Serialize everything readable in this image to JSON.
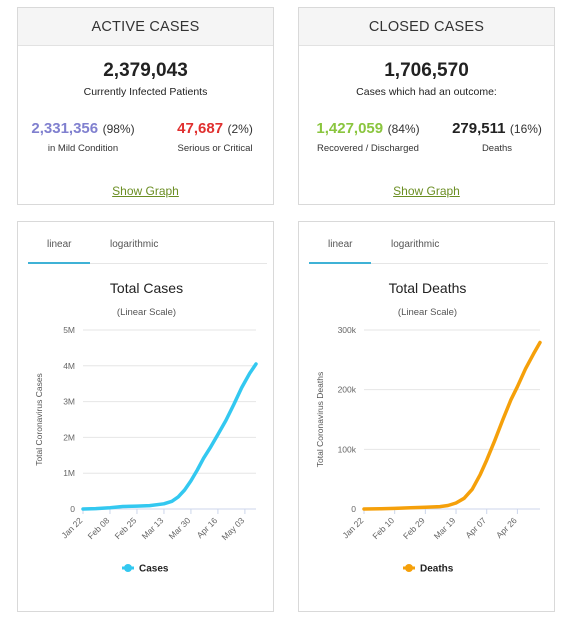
{
  "active": {
    "header": "ACTIVE CASES",
    "total": "2,379,043",
    "total_label": "Currently Infected Patients",
    "mild_num": "2,331,356",
    "mild_pct": "(98%)",
    "mild_label": "in Mild Condition",
    "serious_num": "47,687",
    "serious_pct": "(2%)",
    "serious_label": "Serious or Critical",
    "show_graph": "Show Graph"
  },
  "closed": {
    "header": "CLOSED CASES",
    "total": "1,706,570",
    "total_label": "Cases which had an outcome:",
    "recovered_num": "1,427,059",
    "recovered_pct": "(84%)",
    "recovered_label": "Recovered / Discharged",
    "deaths_num": "279,511",
    "deaths_pct": "(16%)",
    "deaths_label": "Deaths",
    "show_graph": "Show Graph"
  },
  "colors": {
    "mild": "#8080cf",
    "serious": "#e0302f",
    "recovered": "#8ac53e",
    "deaths_text": "#222222",
    "link": "#6b8e23",
    "cases_line": "#33c8f0",
    "deaths_line": "#f5a00a",
    "tab_active": "#3fb2d6"
  },
  "chart_data": [
    {
      "type": "line",
      "tabs": [
        "linear",
        "logarithmic"
      ],
      "active_tab": "linear",
      "title": "Total Cases",
      "subtitle": "(Linear Scale)",
      "ylabel": "Total Coronavirus Cases",
      "xlabel": "",
      "y_ticks": [
        "0",
        "1M",
        "2M",
        "3M",
        "4M",
        "5M"
      ],
      "ylim": [
        0,
        5000000
      ],
      "x_ticks": [
        "Jan 22",
        "Feb 08",
        "Feb 25",
        "Mar 13",
        "Mar 30",
        "Apr 16",
        "May 03"
      ],
      "grid": true,
      "legend": "bottom",
      "series": [
        {
          "name": "Cases",
          "x": [
            "Jan 22",
            "Jan 30",
            "Feb 08",
            "Feb 16",
            "Feb 25",
            "Mar 04",
            "Mar 13",
            "Mar 18",
            "Mar 22",
            "Mar 26",
            "Mar 30",
            "Apr 03",
            "Apr 07",
            "Apr 11",
            "Apr 16",
            "Apr 21",
            "Apr 26",
            "May 01",
            "May 06",
            "May 10"
          ],
          "values": [
            555,
            9900,
            37100,
            71200,
            80900,
            95100,
            145000,
            215000,
            337000,
            530000,
            785000,
            1090000,
            1420000,
            1700000,
            2080000,
            2470000,
            2920000,
            3390000,
            3790000,
            4050000
          ]
        }
      ]
    },
    {
      "type": "line",
      "tabs": [
        "linear",
        "logarithmic"
      ],
      "active_tab": "linear",
      "title": "Total Deaths",
      "subtitle": "(Linear Scale)",
      "ylabel": "Total Coronavirus Deaths",
      "xlabel": "",
      "y_ticks": [
        "0",
        "100k",
        "200k",
        "300k"
      ],
      "ylim": [
        0,
        300000
      ],
      "x_ticks": [
        "Jan 22",
        "Feb 10",
        "Feb 29",
        "Mar 19",
        "Apr 07",
        "Apr 26"
      ],
      "grid": true,
      "legend": "bottom",
      "series": [
        {
          "name": "Deaths",
          "x": [
            "Jan 22",
            "Feb 01",
            "Feb 10",
            "Feb 20",
            "Feb 29",
            "Mar 09",
            "Mar 14",
            "Mar 19",
            "Mar 24",
            "Mar 29",
            "Apr 03",
            "Apr 07",
            "Apr 12",
            "Apr 17",
            "Apr 22",
            "Apr 26",
            "May 01",
            "May 06",
            "May 10"
          ],
          "values": [
            17,
            259,
            1013,
            2247,
            2943,
            3988,
            5800,
            10000,
            18000,
            33000,
            58000,
            82000,
            115000,
            150000,
            183000,
            205000,
            235000,
            260000,
            279000
          ]
        }
      ]
    }
  ]
}
